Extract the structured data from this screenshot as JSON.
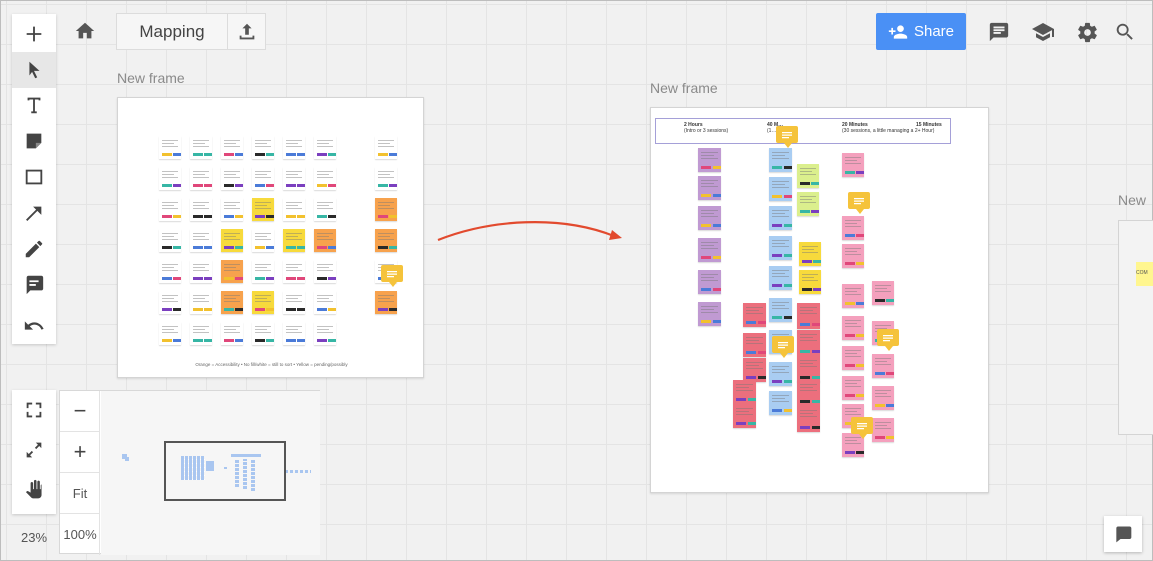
{
  "board": {
    "title": "Mapping",
    "zoom_level": "23%"
  },
  "toolbar": {
    "tools": [
      {
        "name": "add",
        "icon": "plus-icon"
      },
      {
        "name": "select",
        "icon": "cursor-icon",
        "active": true
      },
      {
        "name": "text",
        "icon": "text-icon"
      },
      {
        "name": "sticky-note",
        "icon": "sticky-note-icon"
      },
      {
        "name": "shape",
        "icon": "rectangle-icon"
      },
      {
        "name": "arrow",
        "icon": "arrow-icon"
      },
      {
        "name": "pen",
        "icon": "pen-icon"
      },
      {
        "name": "comment",
        "icon": "comment-icon"
      },
      {
        "name": "undo",
        "icon": "undo-icon"
      }
    ],
    "view_tools": [
      {
        "name": "fit-frame",
        "icon": "frame-corners-icon"
      },
      {
        "name": "fullscreen",
        "icon": "expand-icon"
      },
      {
        "name": "pan",
        "icon": "hand-icon"
      }
    ]
  },
  "zoom_panel": {
    "minus_label": "−",
    "plus_label": "+",
    "fit_label": "Fit",
    "reset_label": "100%"
  },
  "header": {
    "share_label": "Share",
    "icons": [
      "comments-icon",
      "learn-icon",
      "settings-icon",
      "search-icon"
    ]
  },
  "frames": [
    {
      "label": "New frame"
    },
    {
      "label": "New frame"
    },
    {
      "label": "New"
    }
  ],
  "frame1": {
    "caption": "Orange = Accessibility • No fill/white = still to sort • Yellow = pending/possibly"
  },
  "frame2": {
    "columns": [
      {
        "time": "2 Hours",
        "sub": "(Intro or 3 sessions)"
      },
      {
        "time": "40 M…",
        "sub": "(1…"
      },
      {
        "time": "20 Minutes",
        "sub": "(30 sessions, a little\nmanaging a 2+ Hour)"
      },
      {
        "time": "15 Minutes",
        "sub": ""
      }
    ]
  },
  "frame3": {
    "note_text": "COM"
  },
  "colors": {
    "accent": "#4a90f5",
    "connector": "#e24a2e",
    "comment_badge": "#f5c33b",
    "note_white": "#ffffff",
    "note_yellow": "#f7da3c",
    "note_orange": "#f7a24d",
    "note_purple": "#c09ad2",
    "note_blue": "#a9cdf2",
    "note_red": "#ec6f7d",
    "note_pink": "#f4a0bd",
    "note_lime": "#dbef8d"
  }
}
